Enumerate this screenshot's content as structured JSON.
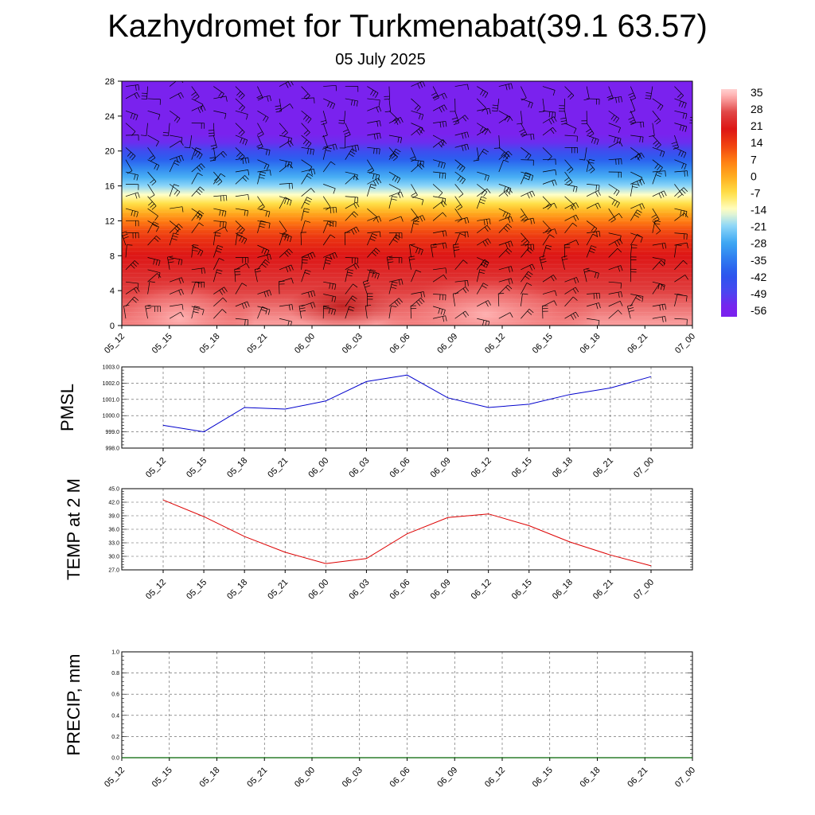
{
  "title": "Kazhydromet for Turkmenabat(39.1 63.57)",
  "subtitle": "05 July 2025",
  "colors": {
    "pmsl_line": "#0000cc",
    "temp_line": "#dd0000",
    "precip_line": "#006400",
    "wind_barb": "#000000",
    "grid": "#555555"
  },
  "chart_data": [
    {
      "type": "heatmap",
      "name": "temperature-wind-cross-section",
      "x_labels": [
        "05_12",
        "05_15",
        "05_18",
        "05_21",
        "06_00",
        "06_03",
        "06_06",
        "06_09",
        "06_12",
        "06_15",
        "06_18",
        "06_21",
        "07_00"
      ],
      "y_ticks": [
        0,
        4,
        8,
        12,
        16,
        20,
        24,
        28
      ],
      "ylim": [
        0,
        28
      ],
      "colorbar_labels": [
        "35",
        "28",
        "21",
        "14",
        "7",
        "0",
        "-7",
        "-14",
        "-21",
        "-28",
        "-35",
        "-42",
        "-49",
        "-56"
      ],
      "colorbar_range": [
        -60,
        38
      ],
      "temperature_profile": [
        {
          "y": 0,
          "v": 34
        },
        {
          "y": 2,
          "v": 31
        },
        {
          "y": 4,
          "v": 27
        },
        {
          "y": 6,
          "v": 24
        },
        {
          "y": 8,
          "v": 21
        },
        {
          "y": 10,
          "v": 16
        },
        {
          "y": 11,
          "v": 12
        },
        {
          "y": 12,
          "v": 7
        },
        {
          "y": 13,
          "v": 0
        },
        {
          "y": 14,
          "v": -7
        },
        {
          "y": 15,
          "v": -14
        },
        {
          "y": 16,
          "v": -21
        },
        {
          "y": 17,
          "v": -27
        },
        {
          "y": 18,
          "v": -33
        },
        {
          "y": 19,
          "v": -40
        },
        {
          "y": 20,
          "v": -47
        },
        {
          "y": 21,
          "v": -54
        },
        {
          "y": 22,
          "v": -58
        },
        {
          "y": 28,
          "v": -57
        }
      ],
      "wind_barbs": "shown",
      "legend": "right"
    },
    {
      "type": "line",
      "name": "pmsl",
      "ylabel": "PMSL",
      "categories": [
        "05_12",
        "05_15",
        "05_18",
        "05_21",
        "06_00",
        "06_03",
        "06_06",
        "06_09",
        "06_12",
        "06_15",
        "06_18",
        "06_21",
        "07_00"
      ],
      "values": [
        999.4,
        999.0,
        1000.5,
        1000.4,
        1000.9,
        1002.1,
        1002.5,
        1001.1,
        1000.5,
        1000.7,
        1001.3,
        1001.7,
        1002.4
      ],
      "ylim": [
        998.0,
        1003.0
      ],
      "y_ticks": [
        "998.0",
        "999.0",
        "1000.0",
        "1001.0",
        "1002.0",
        "1003.0"
      ],
      "grid": true
    },
    {
      "type": "line",
      "name": "temp-2m",
      "ylabel": "TEMP at 2 M",
      "categories": [
        "05_12",
        "05_15",
        "05_18",
        "05_21",
        "06_00",
        "06_03",
        "06_06",
        "06_09",
        "06_12",
        "06_15",
        "06_18",
        "06_21",
        "07_00"
      ],
      "values": [
        42.5,
        38.8,
        34.4,
        30.9,
        28.4,
        29.5,
        35.0,
        38.6,
        39.4,
        36.8,
        33.2,
        30.3,
        27.9
      ],
      "ylim": [
        27.0,
        45.0
      ],
      "y_ticks": [
        "27.0",
        "30.0",
        "33.0",
        "36.0",
        "39.0",
        "42.0",
        "45.0"
      ],
      "grid": true
    },
    {
      "type": "line",
      "name": "precip",
      "ylabel": "PRECIP, mm",
      "categories": [
        "05_12",
        "05_15",
        "05_18",
        "05_21",
        "06_00",
        "06_03",
        "06_06",
        "06_09",
        "06_12",
        "06_15",
        "06_18",
        "06_21",
        "07_00"
      ],
      "values": [
        0,
        0,
        0,
        0,
        0,
        0,
        0,
        0,
        0,
        0,
        0,
        0,
        0
      ],
      "ylim": [
        0.0,
        1.0
      ],
      "y_ticks": [
        "0.0",
        "0.2",
        "0.4",
        "0.6",
        "0.8",
        "1.0"
      ],
      "grid": true
    }
  ]
}
